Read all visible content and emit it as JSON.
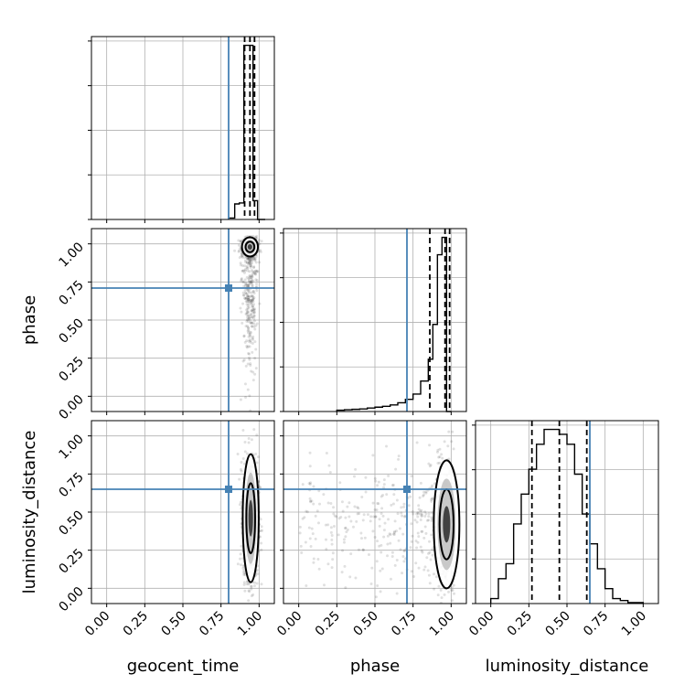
{
  "chart_data": {
    "type": "corner",
    "parameters": [
      "geocent_time",
      "phase",
      "luminosity_distance"
    ],
    "axis_range": [
      -0.1,
      1.1
    ],
    "ticks": [
      0.0,
      0.25,
      0.5,
      0.75,
      1.0
    ],
    "tick_labels": [
      "0.00",
      "0.25",
      "0.50",
      "0.75",
      "1.00"
    ],
    "grid": true,
    "colors": {
      "truth": "#4682b4",
      "hist": "#000000",
      "quantile": "#000000",
      "scatter": "#000000"
    },
    "truths": {
      "geocent_time": 0.8,
      "phase": 0.71,
      "luminosity_distance": 0.65
    },
    "quantiles": {
      "geocent_time": [
        0.905,
        0.94,
        0.97
      ],
      "phase": [
        0.86,
        0.96,
        0.99
      ],
      "luminosity_distance": [
        0.27,
        0.45,
        0.63
      ]
    },
    "histograms": {
      "geocent_time": {
        "bins": [
          0.8,
          0.84,
          0.87,
          0.9,
          0.93,
          0.96,
          0.99,
          1.04
        ],
        "counts": [
          0.3,
          3.3,
          3.5,
          37.0,
          37.0,
          4.0,
          0
        ]
      },
      "phase": {
        "bins": [
          0.25,
          0.3,
          0.35,
          0.4,
          0.45,
          0.5,
          0.55,
          0.6,
          0.65,
          0.7,
          0.75,
          0.8,
          0.85,
          0.88,
          0.91,
          0.94,
          0.97,
          1.0
        ],
        "counts": [
          0.3,
          0.4,
          0.5,
          0.6,
          0.8,
          1.0,
          1.2,
          1.5,
          2.0,
          2.8,
          4.0,
          7.0,
          12.0,
          20.0,
          36.0,
          40.0,
          0
        ]
      },
      "luminosity_distance": {
        "bins": [
          0.0,
          0.05,
          0.1,
          0.15,
          0.2,
          0.25,
          0.3,
          0.35,
          0.4,
          0.45,
          0.5,
          0.55,
          0.6,
          0.65,
          0.7,
          0.75,
          0.8,
          0.85,
          0.9,
          0.95,
          1.0
        ],
        "counts": [
          0.5,
          2.5,
          4.0,
          8.0,
          11.0,
          13.5,
          16.0,
          17.5,
          17.5,
          17.0,
          16.0,
          13.0,
          9.0,
          6.0,
          3.5,
          1.5,
          0.5,
          0.3,
          0.1,
          0.1
        ]
      }
    },
    "panels_2d": [
      {
        "x": "geocent_time",
        "y": "phase",
        "center": [
          0.94,
          0.98
        ],
        "spread": [
          0.025,
          0.03
        ],
        "tail_y_to": 0.25
      },
      {
        "x": "geocent_time",
        "y": "luminosity_distance",
        "center": [
          0.945,
          0.46
        ],
        "spread": [
          0.025,
          0.2
        ]
      },
      {
        "x": "phase",
        "y": "luminosity_distance",
        "center": [
          0.97,
          0.42
        ],
        "spread": [
          0.04,
          0.2
        ],
        "tail_x_to": 0.0
      }
    ]
  }
}
